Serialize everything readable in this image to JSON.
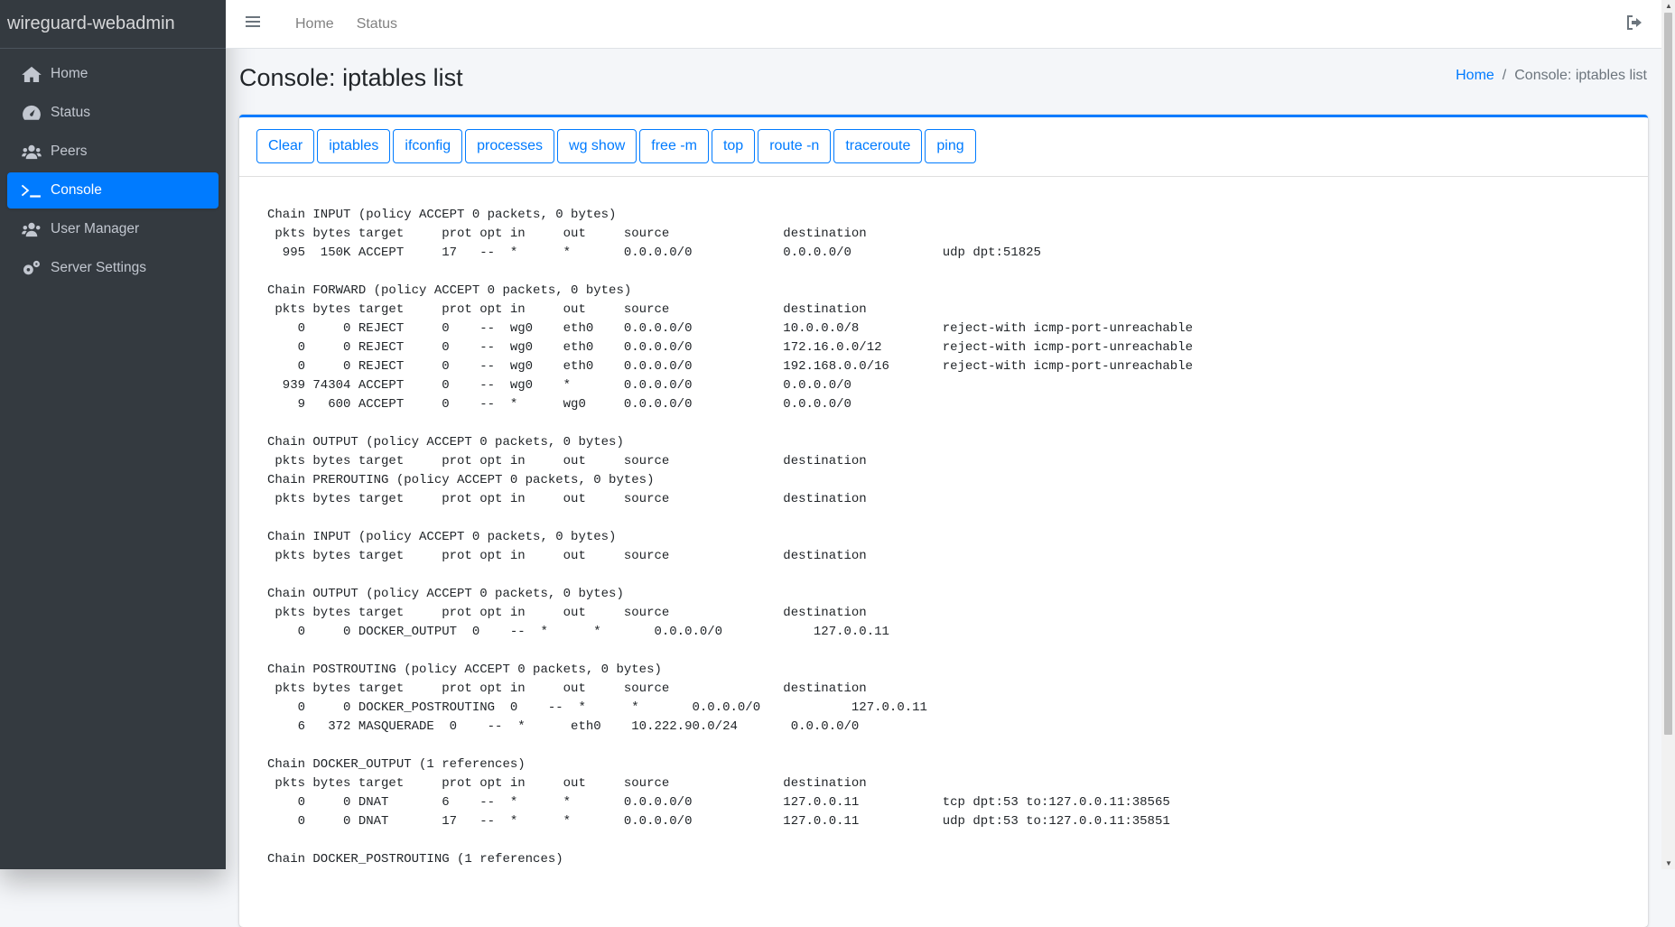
{
  "brand": "wireguard-webadmin",
  "sidebar": {
    "items": [
      {
        "label": "Home",
        "icon": "home-icon"
      },
      {
        "label": "Status",
        "icon": "tachometer-icon"
      },
      {
        "label": "Peers",
        "icon": "users-icon"
      },
      {
        "label": "Console",
        "icon": "terminal-icon",
        "active": true
      },
      {
        "label": "User Manager",
        "icon": "users-cog-icon"
      },
      {
        "label": "Server Settings",
        "icon": "cogs-icon"
      }
    ]
  },
  "topnav": {
    "home": "Home",
    "status": "Status"
  },
  "page": {
    "title": "Console: iptables list"
  },
  "breadcrumb": {
    "home": "Home",
    "current": "Console: iptables list"
  },
  "buttons": [
    "Clear",
    "iptables",
    "ifconfig",
    "processes",
    "wg show",
    "free -m",
    "top",
    "route -n",
    "traceroute",
    "ping"
  ],
  "colors": {
    "primary": "#007bff",
    "sidebar": "#343a40"
  },
  "console": {
    "lines": [
      "Chain INPUT (policy ACCEPT 0 packets, 0 bytes)",
      " pkts bytes target     prot opt in     out     source               destination",
      "  995  150K ACCEPT     17   --  *      *       0.0.0.0/0            0.0.0.0/0            udp dpt:51825",
      "",
      "Chain FORWARD (policy ACCEPT 0 packets, 0 bytes)",
      " pkts bytes target     prot opt in     out     source               destination",
      "    0     0 REJECT     0    --  wg0    eth0    0.0.0.0/0            10.0.0.0/8           reject-with icmp-port-unreachable",
      "    0     0 REJECT     0    --  wg0    eth0    0.0.0.0/0            172.16.0.0/12        reject-with icmp-port-unreachable",
      "    0     0 REJECT     0    --  wg0    eth0    0.0.0.0/0            192.168.0.0/16       reject-with icmp-port-unreachable",
      "  939 74304 ACCEPT     0    --  wg0    *       0.0.0.0/0            0.0.0.0/0",
      "    9   600 ACCEPT     0    --  *      wg0     0.0.0.0/0            0.0.0.0/0",
      "",
      "Chain OUTPUT (policy ACCEPT 0 packets, 0 bytes)",
      " pkts bytes target     prot opt in     out     source               destination",
      "Chain PREROUTING (policy ACCEPT 0 packets, 0 bytes)",
      " pkts bytes target     prot opt in     out     source               destination",
      "",
      "Chain INPUT (policy ACCEPT 0 packets, 0 bytes)",
      " pkts bytes target     prot opt in     out     source               destination",
      "",
      "Chain OUTPUT (policy ACCEPT 0 packets, 0 bytes)",
      " pkts bytes target     prot opt in     out     source               destination",
      "    0     0 DOCKER_OUTPUT  0    --  *      *       0.0.0.0/0            127.0.0.11",
      "",
      "Chain POSTROUTING (policy ACCEPT 0 packets, 0 bytes)",
      " pkts bytes target     prot opt in     out     source               destination",
      "    0     0 DOCKER_POSTROUTING  0    --  *      *       0.0.0.0/0            127.0.0.11",
      "    6   372 MASQUERADE  0    --  *      eth0    10.222.90.0/24       0.0.0.0/0",
      "",
      "Chain DOCKER_OUTPUT (1 references)",
      " pkts bytes target     prot opt in     out     source               destination",
      "    0     0 DNAT       6    --  *      *       0.0.0.0/0            127.0.0.11           tcp dpt:53 to:127.0.0.11:38565",
      "    0     0 DNAT       17   --  *      *       0.0.0.0/0            127.0.0.11           udp dpt:53 to:127.0.0.11:35851",
      "",
      "Chain DOCKER_POSTROUTING (1 references)"
    ]
  }
}
